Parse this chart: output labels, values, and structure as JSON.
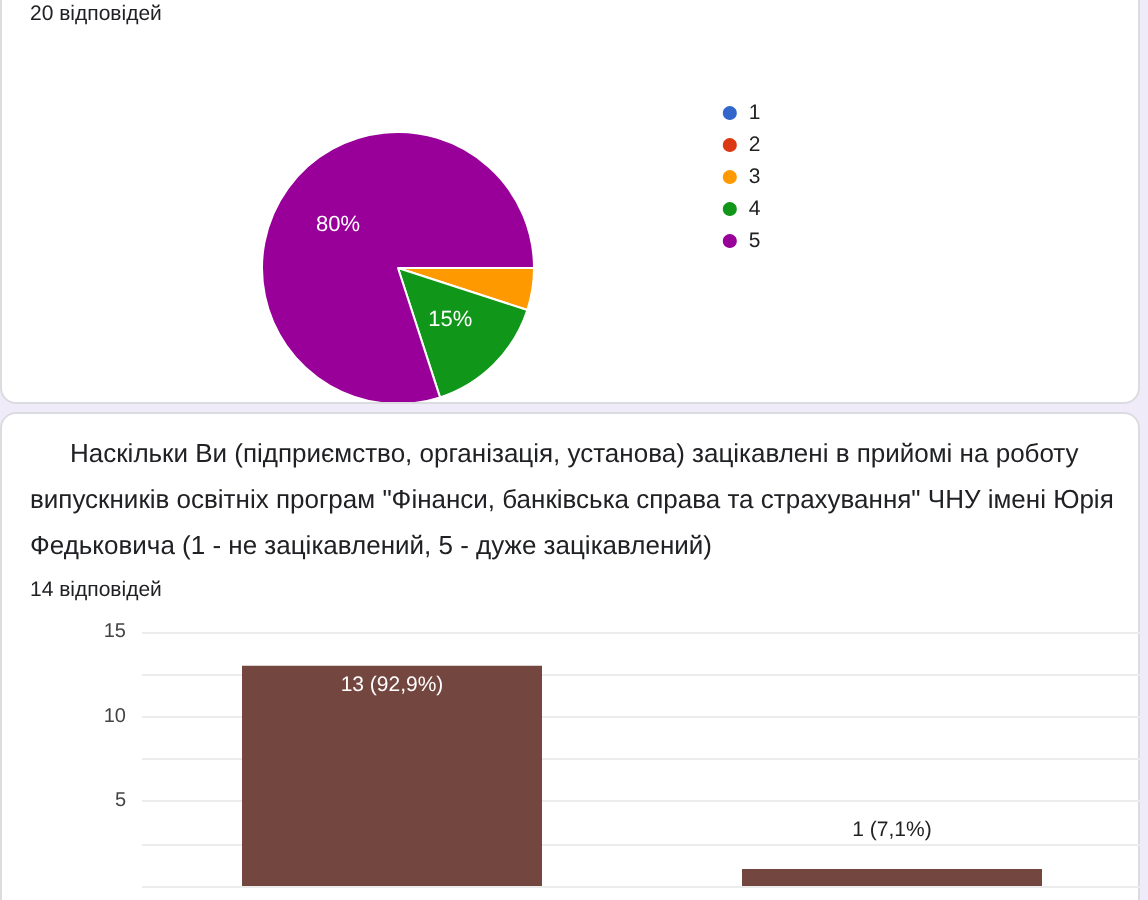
{
  "chart_data": [
    {
      "type": "pie",
      "subtitle": "20 відповідей",
      "categories": [
        "1",
        "2",
        "3",
        "4",
        "5"
      ],
      "values": [
        0,
        0,
        5,
        15,
        80
      ],
      "colors": [
        "#3366cc",
        "#dc3912",
        "#ff9900",
        "#109618",
        "#990099"
      ],
      "value_labels": [
        null,
        null,
        null,
        "15%",
        "80%"
      ],
      "legend": "right"
    },
    {
      "type": "bar",
      "title": "Наскільки Ви (підприємство, організація, установа) зацікавлені в прийомі на роботу випускників освітніх програм \"Фінанси, банківська справа та страхування\" ЧНУ імені Юрія Федьковича (1 - не зацікавлений, 5 - дуже зацікавлений)",
      "subtitle": "14 відповідей",
      "categories": [
        null,
        null
      ],
      "values": [
        13,
        1
      ],
      "color": "#744640",
      "value_labels": [
        "13 (92,9%)",
        "1 (7,1%)"
      ],
      "ylim": [
        0,
        15
      ],
      "yticks": [
        {
          "value": 0,
          "label": null
        },
        {
          "value": 2.5,
          "label": null
        },
        "5",
        {
          "value": 7.5,
          "label": null
        },
        "10",
        {
          "value": 12.5,
          "label": null
        },
        "15"
      ],
      "grid": "y",
      "tick_labels": "y"
    }
  ]
}
